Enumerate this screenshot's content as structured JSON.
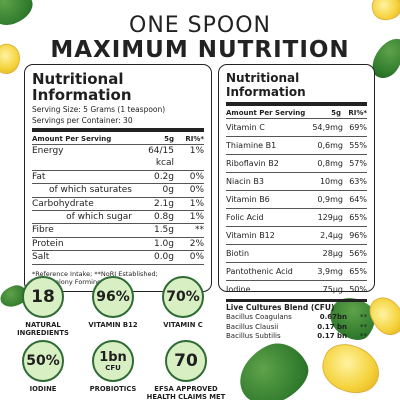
{
  "header": {
    "line1": "ONE SPOON",
    "line2": "MAXIMUM NUTRITION"
  },
  "left_panel": {
    "title": "Nutritional Information",
    "serving_size": "Serving Size: 5 Grams (1 teaspoon)",
    "servings": "Servings per Container: 30",
    "header": {
      "name": "Amount Per Serving",
      "amount": "5g",
      "ri": "RI%*"
    },
    "rows": [
      {
        "name": "Energy",
        "amount": "64/15 kcal",
        "ri": "1%",
        "sub": false
      },
      {
        "name": "Fat",
        "amount": "0.2g",
        "ri": "0%",
        "sub": false
      },
      {
        "name": "of which saturates",
        "amount": "0g",
        "ri": "0%",
        "sub": true
      },
      {
        "name": "Carbohydrate",
        "amount": "2.1g",
        "ri": "1%",
        "sub": false
      },
      {
        "name": "of which sugar",
        "amount": "0.8g",
        "ri": "1%",
        "sub": true
      },
      {
        "name": "Fibre",
        "amount": "1.5g",
        "ri": "**",
        "sub": false
      },
      {
        "name": "Protein",
        "amount": "1.0g",
        "ri": "2%",
        "sub": false
      },
      {
        "name": "Salt",
        "amount": "0.0g",
        "ri": "0%",
        "sub": false
      }
    ],
    "note1": "*Reference Intake; **NoRI Established;",
    "note2": "CFU=Colony Forming UNIT"
  },
  "right_panel": {
    "title": "Nutritional Information",
    "header": {
      "name": "Amount Per Serving",
      "amount": "5g",
      "ri": "RI%*"
    },
    "rows": [
      {
        "name": "Vitamin C",
        "amount": "54,9mg",
        "ri": "69%"
      },
      {
        "name": "Thiamine B1",
        "amount": "0,6mg",
        "ri": "55%"
      },
      {
        "name": "Riboflavin B2",
        "amount": "0,8mg",
        "ri": "57%"
      },
      {
        "name": "Niacin B3",
        "amount": "10mg",
        "ri": "63%"
      },
      {
        "name": "Vitamin B6",
        "amount": "0,9mg",
        "ri": "64%"
      },
      {
        "name": "Folic Acid",
        "amount": "129µg",
        "ri": "65%"
      },
      {
        "name": "Vitamin B12",
        "amount": "2,4µg",
        "ri": "96%"
      },
      {
        "name": "Biotin",
        "amount": "28µg",
        "ri": "56%"
      },
      {
        "name": "Pantothenic Acid",
        "amount": "3,9mg",
        "ri": "65%"
      },
      {
        "name": "Iodine",
        "amount": "75µg",
        "ri": "50%"
      }
    ],
    "cultures_title": "Live Cultures Blend (CFU)",
    "cultures": [
      {
        "name": "Bacillus Coagulans",
        "amount": "0.67bn",
        "ri": "**"
      },
      {
        "name": "Bacillus Clausii",
        "amount": "0.17 bn",
        "ri": "**"
      },
      {
        "name": "Bacillus Subtilis",
        "amount": "0.17 bn",
        "ri": "**"
      }
    ]
  },
  "badges": [
    {
      "value": "18",
      "unit": "",
      "label": "NATURAL INGREDIENTS"
    },
    {
      "value": "96%",
      "unit": "",
      "label": "VITAMIN B12"
    },
    {
      "value": "70%",
      "unit": "",
      "label": "VITAMIN C"
    },
    {
      "value": "50%",
      "unit": "",
      "label": "IODINE"
    },
    {
      "value": "1bn",
      "unit": "CFU",
      "label": "PROBIOTICS"
    },
    {
      "value": "70",
      "unit": "",
      "label": "EFSA APPROVED HEALTH CLAIMS MET"
    }
  ],
  "colors": {
    "badge_fill": "#d8efc4",
    "badge_border": "#2f6b34",
    "text": "#1f1f1f"
  }
}
